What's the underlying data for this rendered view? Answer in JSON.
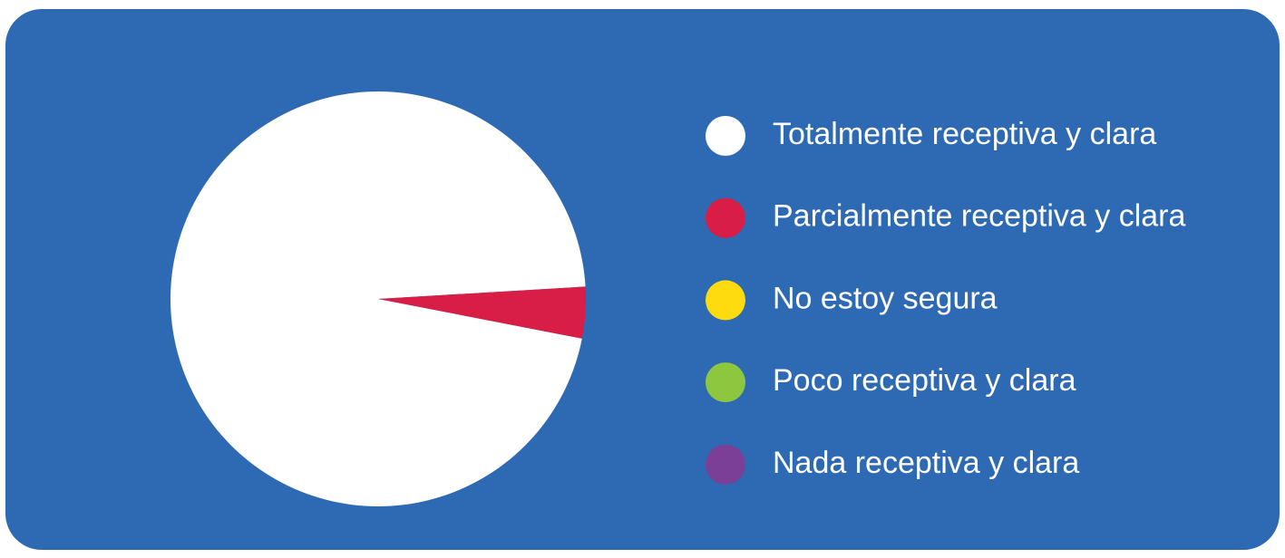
{
  "chart_data": {
    "type": "pie",
    "categories": [
      "Totalmente receptiva y clara",
      "Parcialmente receptiva y clara",
      "No estoy segura",
      "Poco receptiva y clara",
      "Nada receptiva y clara"
    ],
    "values": [
      96,
      4,
      0,
      0,
      0
    ],
    "colors": [
      "#ffffff",
      "#d81e46",
      "#fedb0f",
      "#8dc63f",
      "#7b3f98"
    ],
    "startangle": 101,
    "direction": "clockwise",
    "background": "#2e6ab3"
  }
}
